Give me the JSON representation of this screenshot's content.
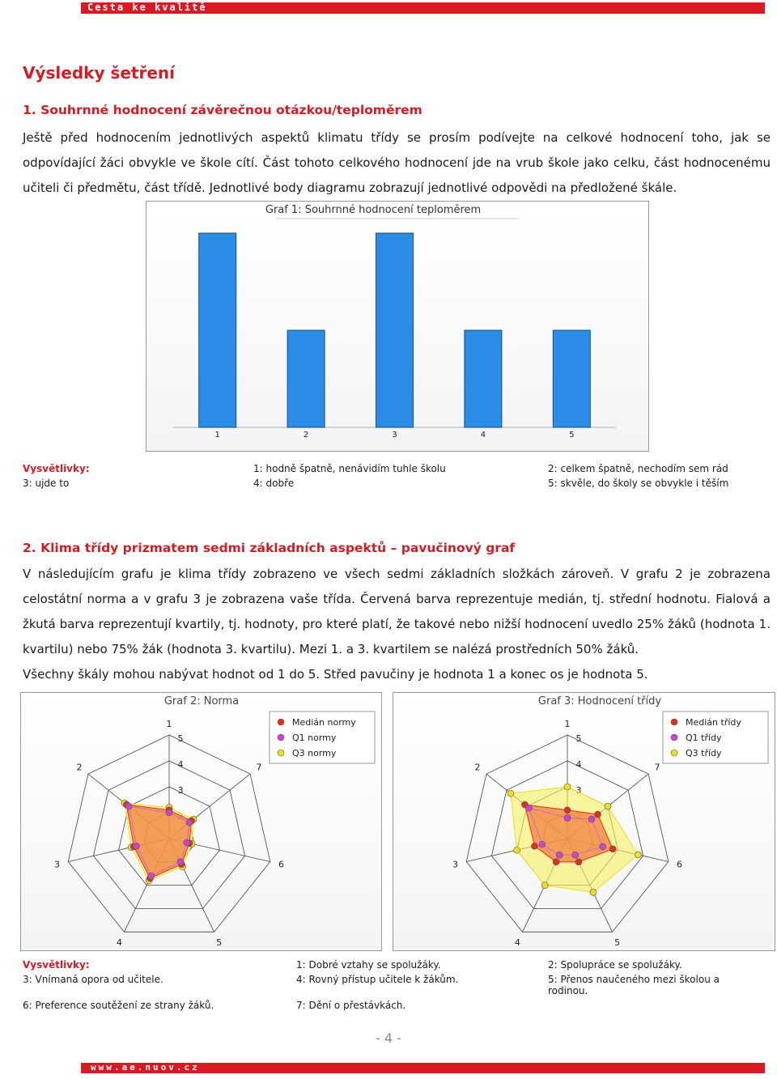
{
  "header": {
    "brand": "Cesta ke kvalitě"
  },
  "title": "Výsledky šetření",
  "sections": [
    {
      "heading": "1. Souhrnné hodnocení závěrečnou otázkou/teploměrem",
      "paragraphs": [
        "Ještě před hodnocením jednotlivých aspektů klimatu třídy se prosím podívejte na celkové hodnocení toho, jak se odpovídající žáci obvykle ve škole cítí. Část tohoto celkového hodnocení jde na vrub škole jako celku, část hodnocenému učiteli či předmětu, část třídě. Jednotlivé body diagramu zobrazují jednotlivé odpovědi na předložené škále."
      ],
      "charts": [
        {
          "type": "bar",
          "title": "Graf 1: Souhrnné hodnocení teploměrem",
          "categories": [
            "1",
            "2",
            "3",
            "4",
            "5"
          ],
          "values": [
            2,
            1,
            2,
            1,
            1
          ],
          "color": "#2b8de6"
        }
      ],
      "legend": {
        "label": "Vysvětlivky:",
        "items": [
          "1: hodně špatně, nenávidím tuhle školu",
          "2: celkem špatně, nechodím sem rád",
          "3: ujde to",
          "4: dobře",
          "5: skvěle, do školy se obvykle i těším"
        ]
      }
    },
    {
      "heading": "2. Klima třídy prizmatem sedmi základních aspektů – pavučinový graf",
      "paragraphs": [
        "V následujícím grafu je klima třídy zobrazeno ve všech sedmi základních složkách zároveň. V grafu 2 je zobrazena celostátní norma a v grafu 3 je zobrazena vaše třída. Červená barva reprezentuje medián, tj. střední hodnotu. Fialová a žkutá barva reprezentují kvartily, tj. hodnoty, pro které platí, že takové nebo nižší hodnocení uvedlo 25% žáků (hodnota 1. kvartilu) nebo 75% žák (hodnota 3. kvartilu). Mezi 1. a 3. kvartilem se nalézá prostředních 50% žáků.",
        "Všechny škály mohou nabývat hodnot od 1 do 5. Střed pavučiny je hodnota 1 a konec os je hodnota 5."
      ],
      "charts": [
        {
          "type": "radar",
          "title": "Graf 2: Norma",
          "categories": [
            "1",
            "2",
            "3",
            "4",
            "5",
            "6",
            "7"
          ],
          "rlim": [
            1,
            5
          ],
          "rticks": [
            2,
            3,
            4,
            5
          ],
          "series": [
            {
              "name": "Medián normy",
              "color": "#e03020",
              "values": [
                2.1,
                3.1,
                2.4,
                2.7,
                2.1,
                1.8,
                2.1
              ]
            },
            {
              "name": "Q1 normy",
              "color": "#cc44cc",
              "values": [
                2.0,
                3.0,
                2.3,
                2.6,
                2.0,
                1.7,
                2.0
              ]
            },
            {
              "name": "Q3 normy",
              "color": "#e8e020",
              "values": [
                2.2,
                3.2,
                2.5,
                2.8,
                2.2,
                1.9,
                2.2
              ]
            }
          ]
        },
        {
          "type": "radar",
          "title": "Graf 3: Hodnocení třídy",
          "categories": [
            "1",
            "2",
            "3",
            "4",
            "5",
            "6",
            "7"
          ],
          "rlim": [
            1,
            5
          ],
          "rticks": [
            2,
            3,
            4,
            5
          ],
          "series": [
            {
              "name": "Medián třídy",
              "color": "#e03020",
              "values": [
                2.1,
                3.1,
                2.3,
                2.0,
                2.0,
                2.8,
                2.5
              ]
            },
            {
              "name": "Q1 třídy",
              "color": "#cc44cc",
              "values": [
                1.8,
                2.9,
                2.0,
                1.7,
                1.7,
                2.4,
                2.2
              ]
            },
            {
              "name": "Q3 třídy",
              "color": "#e8e020",
              "values": [
                3.0,
                3.8,
                3.0,
                3.0,
                3.3,
                3.8,
                3.0
              ]
            }
          ]
        }
      ],
      "legend": {
        "label": "Vysvětlivky:",
        "items": [
          "1: Dobré vztahy se spolužáky.",
          "2: Spolupráce se spolužáky.",
          "3: Vnímaná opora od učitele.",
          "4: Rovný přístup učitele k žákům.",
          "5: Přenos naučeného mezi školou a rodinou.",
          "6: Preference soutěžení ze strany žáků.",
          "7: Dění o přestávkách."
        ]
      }
    }
  ],
  "page_number": "- 4 -",
  "footer": {
    "url": "www.ae.nuov.cz"
  }
}
